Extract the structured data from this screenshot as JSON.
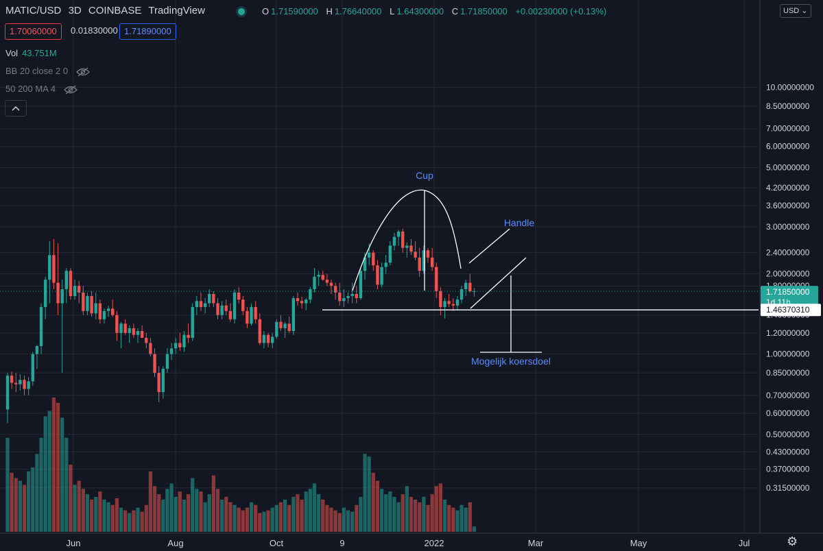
{
  "header": {
    "symbol": "MATIC/USD",
    "interval": "3D",
    "exchange": "COINBASE",
    "source": "TradingView",
    "ohlc": {
      "o_label": "O",
      "o": "1.71590000",
      "h_label": "H",
      "h": "1.76640000",
      "l_label": "L",
      "l": "1.64300000",
      "c_label": "C",
      "c": "1.71850000",
      "change": "+0.00230000 (+0.13%)"
    },
    "bid": "1.70060000",
    "spread": "0.01830000",
    "ask": "1.71890000"
  },
  "indicators": {
    "volume_label": "Vol",
    "volume_value": "43.751M",
    "bb_label": "BB 20 close 2 0",
    "ma_label": "50 200 MA 4"
  },
  "toolbar": {
    "collapse_icon": "chevron-up-icon",
    "currency": "USD ⌄",
    "settings_icon": "gear-icon"
  },
  "colors": {
    "background": "#131722",
    "up": "#26a69a",
    "down": "#ef5350",
    "annotation": "#5b8cff",
    "grid": "#252936",
    "current_price_tag": "#26a69a"
  },
  "chart_data": {
    "type": "candlestick",
    "scale": "log",
    "grid": true,
    "y_ticks": [
      "0.31500000",
      "0.37000000",
      "0.43000000",
      "0.50000000",
      "0.60000000",
      "0.70000000",
      "0.85000000",
      "1.00000000",
      "1.20000000",
      "1.40000000",
      "1.80000000",
      "2.00000000",
      "2.40000000",
      "3.00000000",
      "3.60000000",
      "4.20000000",
      "5.00000000",
      "6.00000000",
      "7.00000000",
      "8.50000000",
      "10.00000000"
    ],
    "x_ticks": [
      "Jun",
      "Aug",
      "Oct",
      "9",
      "2022",
      "Mar",
      "May",
      "Jul"
    ],
    "price_labels": {
      "current": "1.71850000",
      "countdown": "1d 11h",
      "level": "1.46370310"
    },
    "level_price": 1.4637031,
    "annotations": {
      "cup": "Cup",
      "handle": "Handle",
      "target": "Mogelijk koersdoel"
    },
    "candles_ohlc": [
      [
        0.62,
        0.85,
        0.55,
        0.83
      ],
      [
        0.83,
        0.86,
        0.74,
        0.78
      ],
      [
        0.78,
        0.85,
        0.72,
        0.77
      ],
      [
        0.77,
        0.84,
        0.73,
        0.8
      ],
      [
        0.8,
        0.83,
        0.7,
        0.74
      ],
      [
        0.74,
        0.82,
        0.7,
        0.79
      ],
      [
        0.79,
        1.02,
        0.76,
        1.0
      ],
      [
        1.0,
        1.08,
        0.88,
        1.07
      ],
      [
        1.07,
        1.55,
        1.0,
        1.5
      ],
      [
        1.5,
        1.95,
        1.35,
        1.9
      ],
      [
        1.9,
        2.65,
        1.55,
        2.35
      ],
      [
        2.35,
        2.7,
        1.75,
        1.85
      ],
      [
        1.85,
        2.6,
        1.4,
        1.55
      ],
      [
        1.55,
        1.9,
        0.85,
        1.75
      ],
      [
        1.75,
        2.1,
        1.55,
        2.05
      ],
      [
        2.05,
        2.1,
        1.6,
        1.65
      ],
      [
        1.65,
        1.9,
        1.6,
        1.8
      ],
      [
        1.8,
        1.88,
        1.55,
        1.7
      ],
      [
        1.7,
        1.8,
        1.4,
        1.45
      ],
      [
        1.45,
        1.7,
        1.4,
        1.65
      ],
      [
        1.65,
        1.72,
        1.38,
        1.42
      ],
      [
        1.42,
        1.7,
        1.35,
        1.55
      ],
      [
        1.55,
        1.6,
        1.3,
        1.35
      ],
      [
        1.35,
        1.48,
        1.3,
        1.45
      ],
      [
        1.45,
        1.52,
        1.38,
        1.48
      ],
      [
        1.48,
        1.6,
        1.38,
        1.4
      ],
      [
        1.4,
        1.45,
        1.12,
        1.2
      ],
      [
        1.2,
        1.32,
        1.05,
        1.3
      ],
      [
        1.3,
        1.35,
        1.18,
        1.2
      ],
      [
        1.2,
        1.28,
        1.1,
        1.25
      ],
      [
        1.25,
        1.3,
        1.15,
        1.18
      ],
      [
        1.18,
        1.25,
        1.1,
        1.22
      ],
      [
        1.22,
        1.28,
        1.15,
        1.15
      ],
      [
        1.15,
        1.2,
        1.05,
        1.1
      ],
      [
        1.1,
        1.15,
        0.98,
        1.0
      ],
      [
        1.0,
        1.05,
        0.82,
        0.85
      ],
      [
        0.85,
        0.9,
        0.66,
        0.72
      ],
      [
        0.72,
        0.9,
        0.68,
        0.88
      ],
      [
        0.88,
        1.05,
        0.85,
        1.0
      ],
      [
        1.0,
        1.1,
        0.95,
        1.05
      ],
      [
        1.05,
        1.15,
        1.0,
        1.1
      ],
      [
        1.1,
        1.2,
        1.03,
        1.06
      ],
      [
        1.06,
        1.22,
        1.02,
        1.18
      ],
      [
        1.18,
        1.3,
        1.1,
        1.15
      ],
      [
        1.15,
        1.55,
        1.12,
        1.5
      ],
      [
        1.5,
        1.65,
        1.4,
        1.58
      ],
      [
        1.58,
        1.7,
        1.45,
        1.5
      ],
      [
        1.5,
        1.62,
        1.42,
        1.55
      ],
      [
        1.55,
        1.75,
        1.5,
        1.68
      ],
      [
        1.68,
        1.72,
        1.5,
        1.55
      ],
      [
        1.55,
        1.62,
        1.35,
        1.4
      ],
      [
        1.4,
        1.58,
        1.35,
        1.52
      ],
      [
        1.52,
        1.6,
        1.4,
        1.45
      ],
      [
        1.45,
        1.55,
        1.32,
        1.35
      ],
      [
        1.35,
        1.75,
        1.3,
        1.7
      ],
      [
        1.7,
        1.78,
        1.55,
        1.6
      ],
      [
        1.6,
        1.65,
        1.4,
        1.45
      ],
      [
        1.45,
        1.5,
        1.25,
        1.3
      ],
      [
        1.3,
        1.55,
        1.28,
        1.5
      ],
      [
        1.5,
        1.58,
        1.3,
        1.35
      ],
      [
        1.35,
        1.42,
        1.08,
        1.1
      ],
      [
        1.1,
        1.22,
        1.05,
        1.18
      ],
      [
        1.18,
        1.2,
        1.06,
        1.1
      ],
      [
        1.1,
        1.2,
        1.05,
        1.16
      ],
      [
        1.16,
        1.35,
        1.14,
        1.32
      ],
      [
        1.32,
        1.4,
        1.22,
        1.25
      ],
      [
        1.25,
        1.32,
        1.15,
        1.3
      ],
      [
        1.3,
        1.38,
        1.2,
        1.22
      ],
      [
        1.22,
        1.65,
        1.18,
        1.62
      ],
      [
        1.62,
        1.7,
        1.52,
        1.58
      ],
      [
        1.58,
        1.64,
        1.48,
        1.55
      ],
      [
        1.55,
        1.62,
        1.46,
        1.6
      ],
      [
        1.6,
        1.78,
        1.55,
        1.75
      ],
      [
        1.75,
        2.1,
        1.7,
        1.95
      ],
      [
        1.95,
        2.05,
        1.8,
        1.98
      ],
      [
        1.98,
        2.05,
        1.88,
        1.9
      ],
      [
        1.9,
        2.0,
        1.8,
        1.85
      ],
      [
        1.85,
        1.9,
        1.68,
        1.8
      ],
      [
        1.8,
        1.85,
        1.6,
        1.7
      ],
      [
        1.7,
        1.85,
        1.52,
        1.58
      ],
      [
        1.58,
        1.75,
        1.5,
        1.62
      ],
      [
        1.62,
        1.7,
        1.55,
        1.65
      ],
      [
        1.65,
        1.85,
        1.55,
        1.68
      ],
      [
        1.68,
        1.8,
        1.55,
        1.62
      ],
      [
        1.62,
        2.1,
        1.6,
        2.05
      ],
      [
        2.05,
        2.4,
        1.9,
        2.3
      ],
      [
        2.3,
        2.6,
        2.15,
        2.4
      ],
      [
        2.4,
        2.45,
        2.05,
        2.15
      ],
      [
        2.15,
        2.25,
        1.75,
        1.82
      ],
      [
        1.82,
        2.2,
        1.78,
        2.12
      ],
      [
        2.12,
        2.35,
        2.0,
        2.2
      ],
      [
        2.2,
        2.65,
        2.15,
        2.55
      ],
      [
        2.55,
        2.85,
        2.45,
        2.75
      ],
      [
        2.75,
        2.92,
        2.55,
        2.88
      ],
      [
        2.88,
        2.95,
        2.4,
        2.5
      ],
      [
        2.5,
        2.62,
        2.3,
        2.55
      ],
      [
        2.55,
        2.7,
        2.35,
        2.42
      ],
      [
        2.42,
        2.65,
        2.25,
        2.3
      ],
      [
        2.3,
        2.5,
        1.95,
        2.05
      ],
      [
        2.05,
        2.55,
        2.0,
        2.45
      ],
      [
        2.45,
        2.5,
        2.2,
        2.3
      ],
      [
        2.3,
        2.5,
        2.05,
        2.12
      ],
      [
        2.12,
        2.2,
        1.62,
        1.72
      ],
      [
        1.72,
        1.78,
        1.4,
        1.5
      ],
      [
        1.5,
        1.62,
        1.36,
        1.58
      ],
      [
        1.58,
        1.68,
        1.5,
        1.54
      ],
      [
        1.54,
        1.62,
        1.45,
        1.52
      ],
      [
        1.52,
        1.65,
        1.47,
        1.6
      ],
      [
        1.6,
        1.8,
        1.55,
        1.75
      ],
      [
        1.75,
        1.9,
        1.65,
        1.85
      ],
      [
        1.85,
        2.0,
        1.7,
        1.72
      ],
      [
        1.72,
        1.77,
        1.64,
        1.72
      ]
    ],
    "volume": [
      0.7,
      0.44,
      0.4,
      0.38,
      0.35,
      0.45,
      0.48,
      0.58,
      0.7,
      0.86,
      0.9,
      1.0,
      0.96,
      0.85,
      0.7,
      0.5,
      0.35,
      0.38,
      0.32,
      0.28,
      0.24,
      0.26,
      0.3,
      0.24,
      0.22,
      0.2,
      0.25,
      0.18,
      0.16,
      0.14,
      0.16,
      0.18,
      0.15,
      0.2,
      0.45,
      0.34,
      0.28,
      0.24,
      0.32,
      0.36,
      0.26,
      0.3,
      0.24,
      0.28,
      0.4,
      0.32,
      0.3,
      0.22,
      0.28,
      0.42,
      0.32,
      0.24,
      0.26,
      0.22,
      0.2,
      0.18,
      0.16,
      0.18,
      0.22,
      0.2,
      0.14,
      0.15,
      0.16,
      0.18,
      0.2,
      0.22,
      0.24,
      0.2,
      0.26,
      0.28,
      0.24,
      0.3,
      0.32,
      0.36,
      0.28,
      0.24,
      0.2,
      0.18,
      0.16,
      0.14,
      0.18,
      0.16,
      0.15,
      0.2,
      0.26,
      0.58,
      0.56,
      0.44,
      0.38,
      0.32,
      0.28,
      0.3,
      0.26,
      0.22,
      0.28,
      0.34,
      0.26,
      0.24,
      0.22,
      0.26,
      0.2,
      0.28,
      0.34,
      0.36,
      0.24,
      0.2,
      0.18,
      0.16,
      0.2,
      0.18,
      0.22,
      0.04
    ]
  }
}
